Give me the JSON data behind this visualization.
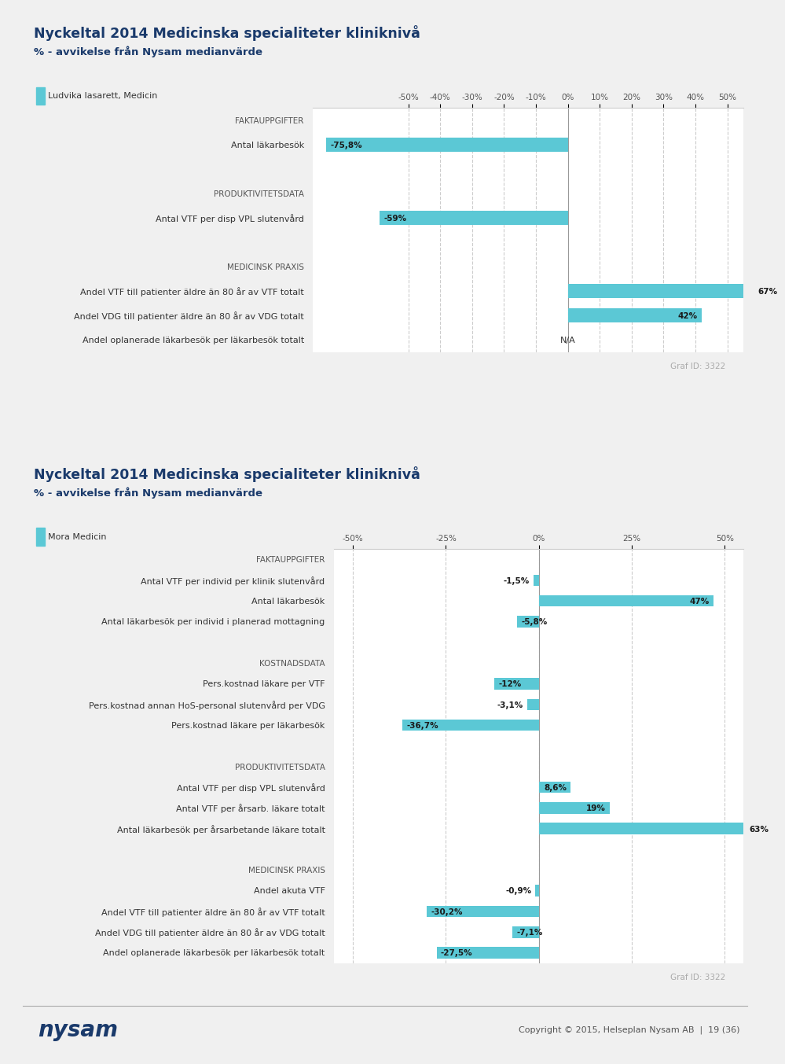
{
  "page_bg": "#f0f0f0",
  "chart_bg": "#ffffff",
  "header_bg": "#e0e0e0",
  "bar_color": "#5bc8d5",
  "title_color": "#1a3a6b",
  "label_color": "#333333",
  "section_color": "#555555",
  "graf_id_color": "#aaaaaa",
  "title1": "Nyckeltal 2014 Medicinska specialiteter kliniknivå",
  "subtitle1": "% - avvikelse från Nysam medianvärde",
  "legend1": "Ludvika lasarett, Medicin",
  "title2": "Nyckeltal 2014 Medicinska specialiteter kliniknivå",
  "subtitle2": "% - avvikelse från Nysam medianvärde",
  "legend2": "Mora Medicin",
  "graf_id": "Graf ID: 3322",
  "copyright": "Copyright © 2015, Helseplan Nysam AB  |  19 (36)",
  "chart1": {
    "xlim": [
      -80,
      55
    ],
    "xticks": [
      -50,
      -40,
      -30,
      -20,
      -10,
      0,
      10,
      20,
      30,
      40,
      50
    ],
    "xlabels": [
      "-50%",
      "-40%",
      "-30%",
      "-20%",
      "-10%",
      "0%",
      "10%",
      "20%",
      "30%",
      "40%",
      "50%"
    ],
    "rows": [
      {
        "label": "FAKTAUPPGIFTER",
        "value": null,
        "is_section": true
      },
      {
        "label": "Antal läkarbesök",
        "value": -75.8,
        "is_section": false
      },
      {
        "label": "",
        "value": null,
        "is_section": false
      },
      {
        "label": "PRODUKTIVITETSDATA",
        "value": null,
        "is_section": true
      },
      {
        "label": "Antal VTF per disp VPL slutenvård",
        "value": -59.0,
        "is_section": false
      },
      {
        "label": "",
        "value": null,
        "is_section": false
      },
      {
        "label": "MEDICINSK PRAXIS",
        "value": null,
        "is_section": true
      },
      {
        "label": "Andel VTF till patienter äldre än 80 år av VTF totalt",
        "value": 67.0,
        "is_section": false
      },
      {
        "label": "Andel VDG till patienter äldre än 80 år av VDG totalt",
        "value": 42.0,
        "is_section": false
      },
      {
        "label": "Andel oplanerade läkarbesök per läkarbesök totalt",
        "value": null,
        "is_na": true,
        "is_section": false
      }
    ]
  },
  "chart2": {
    "xlim": [
      -55,
      55
    ],
    "xticks": [
      -50,
      -25,
      0,
      25,
      50
    ],
    "xlabels": [
      "-50%",
      "-25%",
      "0%",
      "25%",
      "50%"
    ],
    "rows": [
      {
        "label": "FAKTAUPPGIFTER",
        "value": null,
        "is_section": true
      },
      {
        "label": "Antal VTF per individ per klinik slutenvård",
        "value": -1.5,
        "is_section": false
      },
      {
        "label": "Antal läkarbesök",
        "value": 47.0,
        "is_section": false
      },
      {
        "label": "Antal läkarbesök per individ i planerad mottagning",
        "value": -5.8,
        "is_section": false
      },
      {
        "label": "",
        "value": null,
        "is_section": false
      },
      {
        "label": "KOSTNADSDATA",
        "value": null,
        "is_section": true
      },
      {
        "label": "Pers.kostnad läkare per VTF",
        "value": -12.0,
        "is_section": false
      },
      {
        "label": "Pers.kostnad annan HoS-personal slutenvård per VDG",
        "value": -3.1,
        "is_section": false
      },
      {
        "label": "Pers.kostnad läkare per läkarbesök",
        "value": -36.7,
        "is_section": false
      },
      {
        "label": "",
        "value": null,
        "is_section": false
      },
      {
        "label": "PRODUKTIVITETSDATA",
        "value": null,
        "is_section": true
      },
      {
        "label": "Antal VTF per disp VPL slutenvård",
        "value": 8.6,
        "is_section": false
      },
      {
        "label": "Antal VTF per årsarb. läkare totalt",
        "value": 19.0,
        "is_section": false
      },
      {
        "label": "Antal läkarbesök per årsarbetande läkare totalt",
        "value": 63.0,
        "is_section": false
      },
      {
        "label": "",
        "value": null,
        "is_section": false
      },
      {
        "label": "MEDICINSK PRAXIS",
        "value": null,
        "is_section": true
      },
      {
        "label": "Andel akuta VTF",
        "value": -0.9,
        "is_section": false
      },
      {
        "label": "Andel VTF till patienter äldre än 80 år av VTF totalt",
        "value": -30.2,
        "is_section": false
      },
      {
        "label": "Andel VDG till patienter äldre än 80 år av VDG totalt",
        "value": -7.1,
        "is_section": false
      },
      {
        "label": "Andel oplanerade läkarbesök per läkarbesök totalt",
        "value": -27.5,
        "is_section": false
      }
    ]
  }
}
